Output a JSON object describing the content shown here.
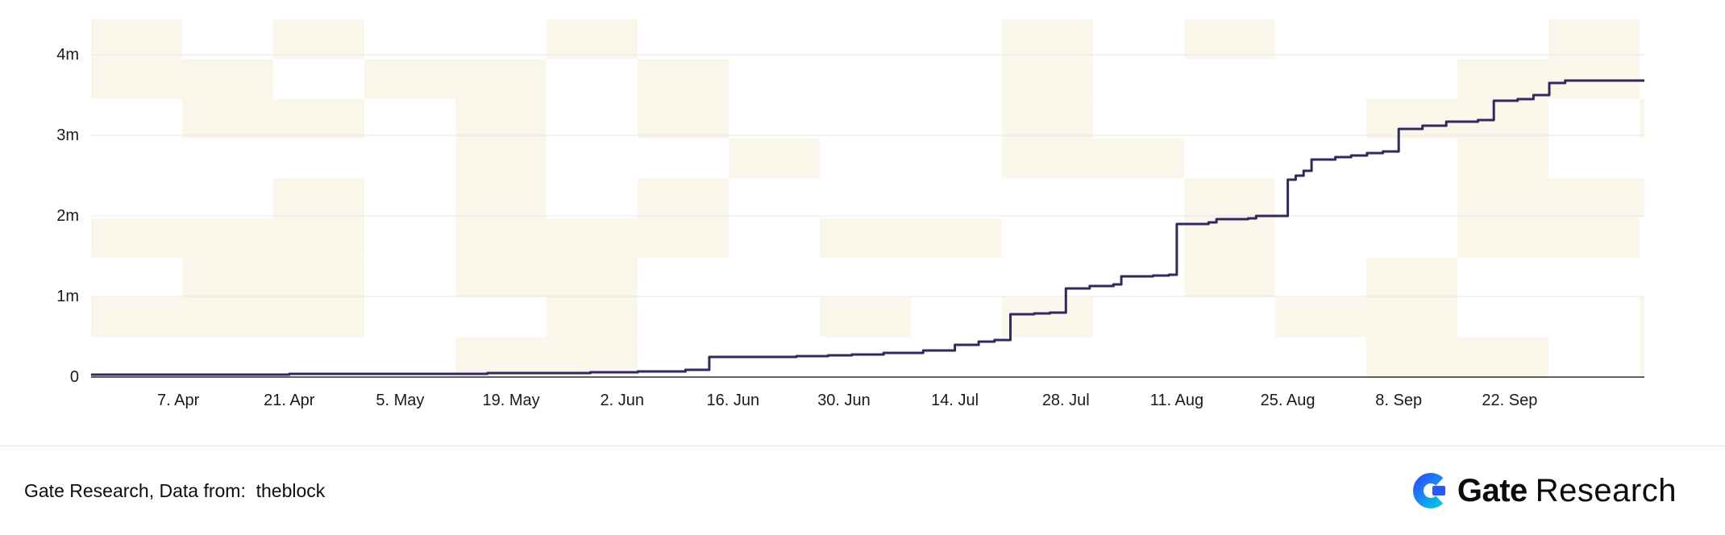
{
  "chart_data": {
    "type": "line",
    "title": "",
    "xlabel": "",
    "ylabel": "",
    "units": "millions",
    "ylim": [
      0,
      4000000
    ],
    "grid": true,
    "legend": "none",
    "line_color": "#2e2a61",
    "y_ticks": [
      {
        "label": "0",
        "value": 0
      },
      {
        "label": "1m",
        "value": 1
      },
      {
        "label": "2m",
        "value": 2
      },
      {
        "label": "3m",
        "value": 3
      },
      {
        "label": "4m",
        "value": 4
      }
    ],
    "x_ticks": [
      {
        "label": "7. Apr",
        "day": 6
      },
      {
        "label": "21. Apr",
        "day": 20
      },
      {
        "label": "5. May",
        "day": 34
      },
      {
        "label": "19. May",
        "day": 48
      },
      {
        "label": "2. Jun",
        "day": 62
      },
      {
        "label": "16. Jun",
        "day": 76
      },
      {
        "label": "30. Jun",
        "day": 90
      },
      {
        "label": "14. Jul",
        "day": 104
      },
      {
        "label": "28. Jul",
        "day": 118
      },
      {
        "label": "11. Aug",
        "day": 132
      },
      {
        "label": "25. Aug",
        "day": 146
      },
      {
        "label": "8. Sep",
        "day": 160
      },
      {
        "label": "22. Sep",
        "day": 174
      }
    ],
    "x_domain_days": [
      -5,
      191
    ],
    "series": [
      {
        "step": true,
        "color": "#2e2a61",
        "points_day_millions": [
          [
            -5,
            0.03
          ],
          [
            20,
            0.04
          ],
          [
            45,
            0.05
          ],
          [
            58,
            0.06
          ],
          [
            64,
            0.07
          ],
          [
            70,
            0.09
          ],
          [
            73,
            0.25
          ],
          [
            80,
            0.25
          ],
          [
            84,
            0.26
          ],
          [
            88,
            0.27
          ],
          [
            91,
            0.28
          ],
          [
            95,
            0.3
          ],
          [
            100,
            0.33
          ],
          [
            104,
            0.4
          ],
          [
            107,
            0.44
          ],
          [
            109,
            0.46
          ],
          [
            111,
            0.78
          ],
          [
            114,
            0.79
          ],
          [
            116,
            0.8
          ],
          [
            118,
            1.1
          ],
          [
            121,
            1.13
          ],
          [
            124,
            1.15
          ],
          [
            125,
            1.25
          ],
          [
            129,
            1.26
          ],
          [
            131,
            1.27
          ],
          [
            132,
            1.9
          ],
          [
            136,
            1.92
          ],
          [
            137,
            1.96
          ],
          [
            141,
            1.97
          ],
          [
            142,
            2.0
          ],
          [
            146,
            2.45
          ],
          [
            147,
            2.5
          ],
          [
            148,
            2.56
          ],
          [
            149,
            2.7
          ],
          [
            152,
            2.73
          ],
          [
            154,
            2.75
          ],
          [
            156,
            2.78
          ],
          [
            158,
            2.8
          ],
          [
            160,
            3.08
          ],
          [
            163,
            3.12
          ],
          [
            166,
            3.17
          ],
          [
            170,
            3.19
          ],
          [
            172,
            3.43
          ],
          [
            175,
            3.45
          ],
          [
            177,
            3.5
          ],
          [
            179,
            3.65
          ],
          [
            181,
            3.68
          ],
          [
            191,
            3.68
          ]
        ]
      }
    ]
  },
  "footer": {
    "source_text": "Gate Research, Data from:  theblock",
    "brand_bold": "Gate",
    "brand_regular": "Research"
  },
  "theme": {
    "pattern_color": "#faf7ea",
    "grid_color": "#ebebeb",
    "axis_color": "#2b2b2b",
    "text_color": "#1a1a1a",
    "logo_blue": "#2956ff",
    "logo_cyan": "#00c8e8"
  }
}
